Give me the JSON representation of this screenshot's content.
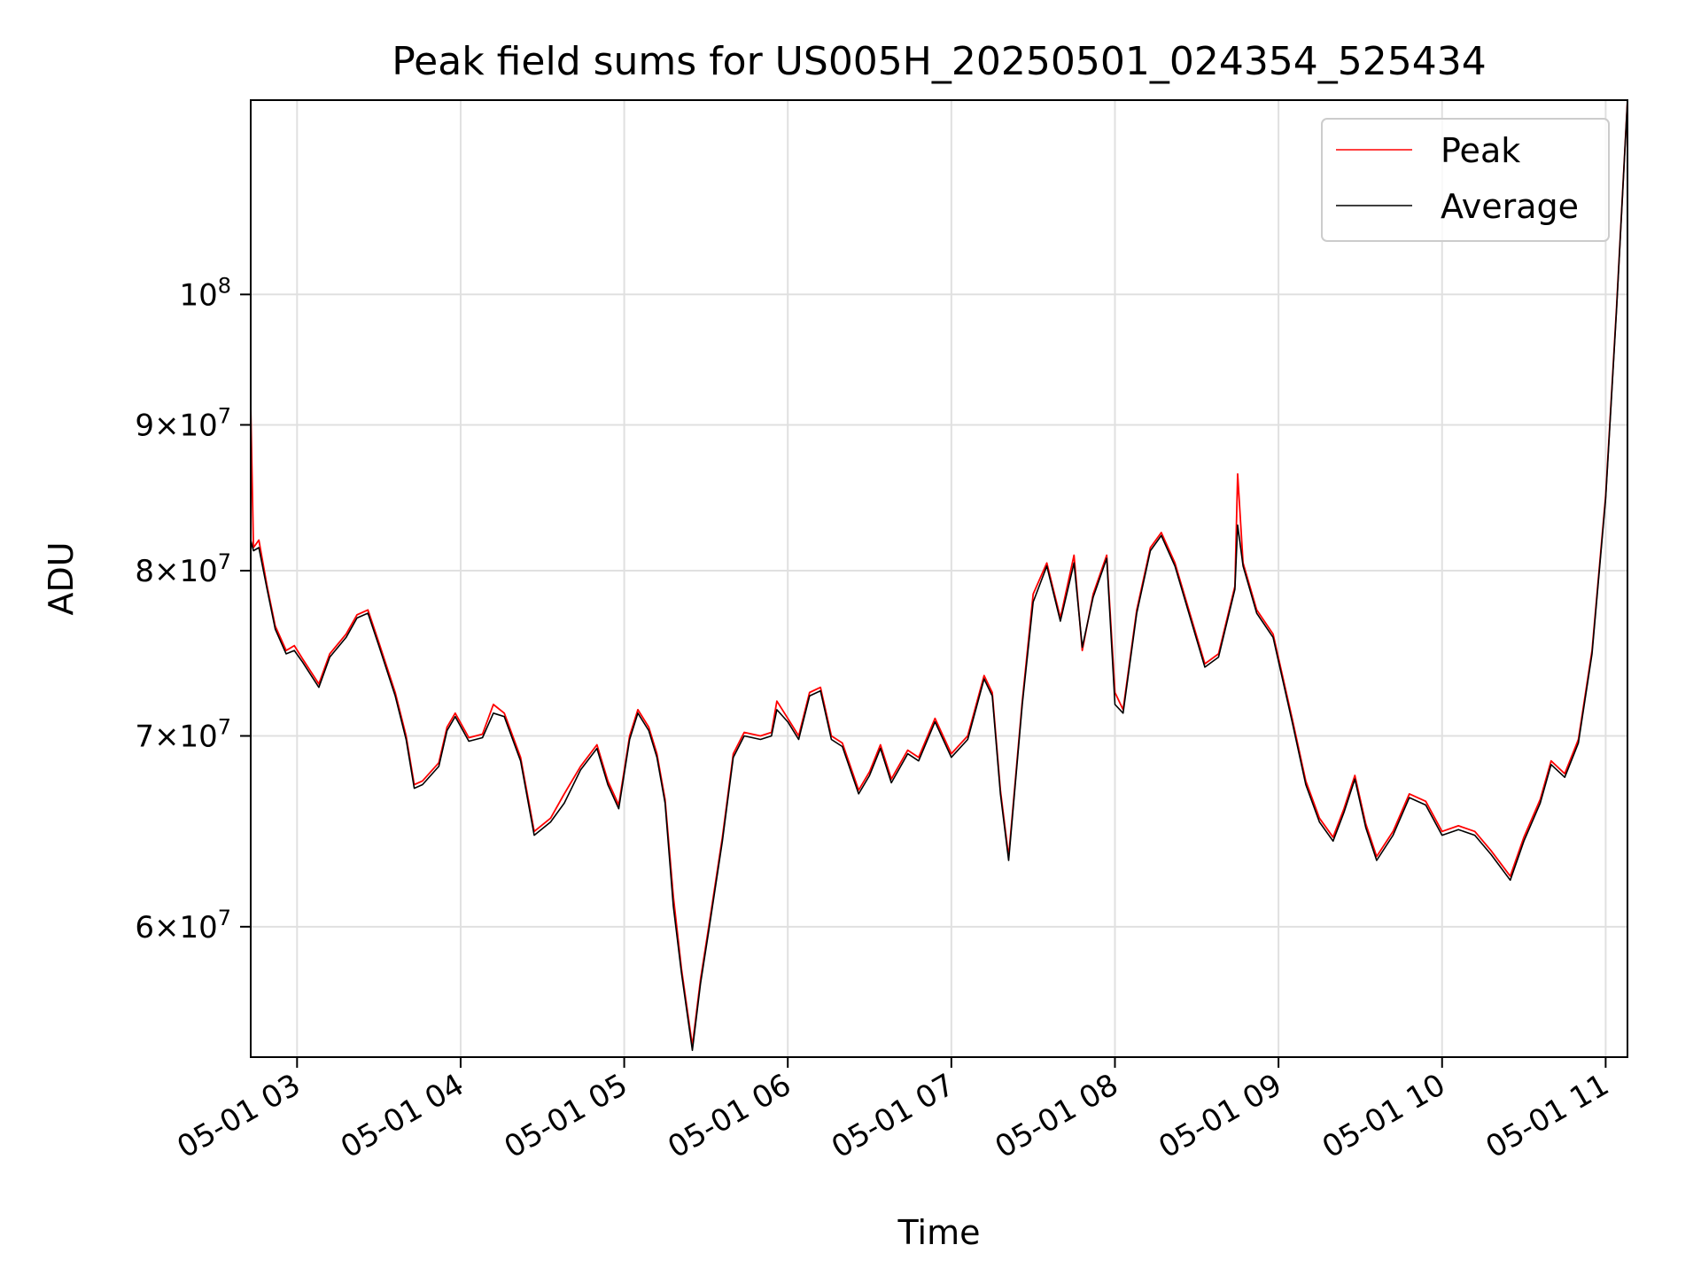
{
  "chart_data": {
    "type": "line",
    "title": "Peak field sums for US005H_20250501_024354_525434",
    "xlabel": "Time",
    "ylabel": "ADU",
    "y_scale": "log",
    "ylim": [
      54000000,
      117000000
    ],
    "xlim": [
      "2025-05-01 02:43",
      "2025-05-01 11:08"
    ],
    "grid": true,
    "legend_position": "top-right",
    "x_ticks": [
      {
        "time": "2025-05-01 03:00",
        "label": "05-01 03"
      },
      {
        "time": "2025-05-01 04:00",
        "label": "05-01 04"
      },
      {
        "time": "2025-05-01 05:00",
        "label": "05-01 05"
      },
      {
        "time": "2025-05-01 06:00",
        "label": "05-01 06"
      },
      {
        "time": "2025-05-01 07:00",
        "label": "05-01 07"
      },
      {
        "time": "2025-05-01 08:00",
        "label": "05-01 08"
      },
      {
        "time": "2025-05-01 09:00",
        "label": "05-01 09"
      },
      {
        "time": "2025-05-01 10:00",
        "label": "05-01 10"
      },
      {
        "time": "2025-05-01 11:00",
        "label": "05-01 11"
      }
    ],
    "y_ticks": [
      {
        "value": 60000000,
        "mantissa": "6",
        "exponent": "7"
      },
      {
        "value": 70000000,
        "mantissa": "7",
        "exponent": "7"
      },
      {
        "value": 80000000,
        "mantissa": "8",
        "exponent": "7"
      },
      {
        "value": 90000000,
        "mantissa": "9",
        "exponent": "7"
      },
      {
        "value": 100000000,
        "mantissa": "",
        "exponent": "8"
      }
    ],
    "colors": {
      "peak": "#ff0000",
      "average": "#000000",
      "grid": "#e0e0e0"
    },
    "series": [
      {
        "name": "Peak",
        "key": "peak",
        "points": [
          [
            "2025-05-01 02:43",
            91500000
          ],
          [
            "2025-05-01 02:44",
            81500000
          ],
          [
            "2025-05-01 02:46",
            82000000
          ],
          [
            "2025-05-01 02:49",
            79000000
          ],
          [
            "2025-05-01 02:52",
            76500000
          ],
          [
            "2025-05-01 02:56",
            75000000
          ],
          [
            "2025-05-01 02:59",
            75300000
          ],
          [
            "2025-05-01 03:02",
            74500000
          ],
          [
            "2025-05-01 03:08",
            73000000
          ],
          [
            "2025-05-01 03:12",
            74800000
          ],
          [
            "2025-05-01 03:18",
            76000000
          ],
          [
            "2025-05-01 03:22",
            77200000
          ],
          [
            "2025-05-01 03:26",
            77500000
          ],
          [
            "2025-05-01 03:30",
            75500000
          ],
          [
            "2025-05-01 03:36",
            72500000
          ],
          [
            "2025-05-01 03:40",
            70000000
          ],
          [
            "2025-05-01 03:43",
            67300000
          ],
          [
            "2025-05-01 03:46",
            67500000
          ],
          [
            "2025-05-01 03:52",
            68500000
          ],
          [
            "2025-05-01 03:55",
            70500000
          ],
          [
            "2025-05-01 03:58",
            71300000
          ],
          [
            "2025-05-01 04:03",
            69900000
          ],
          [
            "2025-05-01 04:08",
            70100000
          ],
          [
            "2025-05-01 04:12",
            71800000
          ],
          [
            "2025-05-01 04:16",
            71300000
          ],
          [
            "2025-05-01 04:22",
            68800000
          ],
          [
            "2025-05-01 04:27",
            64800000
          ],
          [
            "2025-05-01 04:33",
            65500000
          ],
          [
            "2025-05-01 04:38",
            66800000
          ],
          [
            "2025-05-01 04:44",
            68300000
          ],
          [
            "2025-05-01 04:50",
            69500000
          ],
          [
            "2025-05-01 04:54",
            67500000
          ],
          [
            "2025-05-01 04:58",
            66200000
          ],
          [
            "2025-05-01 05:02",
            70000000
          ],
          [
            "2025-05-01 05:05",
            71500000
          ],
          [
            "2025-05-01 05:09",
            70500000
          ],
          [
            "2025-05-01 05:12",
            69000000
          ],
          [
            "2025-05-01 05:15",
            66500000
          ],
          [
            "2025-05-01 05:18",
            61500000
          ],
          [
            "2025-05-01 05:21",
            58000000
          ],
          [
            "2025-05-01 05:25",
            54500000
          ],
          [
            "2025-05-01 05:28",
            57500000
          ],
          [
            "2025-05-01 05:31",
            60000000
          ],
          [
            "2025-05-01 05:36",
            64500000
          ],
          [
            "2025-05-01 05:40",
            69000000
          ],
          [
            "2025-05-01 05:44",
            70200000
          ],
          [
            "2025-05-01 05:50",
            70000000
          ],
          [
            "2025-05-01 05:54",
            70200000
          ],
          [
            "2025-05-01 05:56",
            72000000
          ],
          [
            "2025-05-01 06:00",
            71000000
          ],
          [
            "2025-05-01 06:04",
            70000000
          ],
          [
            "2025-05-01 06:08",
            72500000
          ],
          [
            "2025-05-01 06:12",
            72800000
          ],
          [
            "2025-05-01 06:16",
            70000000
          ],
          [
            "2025-05-01 06:20",
            69600000
          ],
          [
            "2025-05-01 06:26",
            67000000
          ],
          [
            "2025-05-01 06:30",
            68000000
          ],
          [
            "2025-05-01 06:34",
            69500000
          ],
          [
            "2025-05-01 06:38",
            67600000
          ],
          [
            "2025-05-01 06:44",
            69200000
          ],
          [
            "2025-05-01 06:48",
            68800000
          ],
          [
            "2025-05-01 06:54",
            71000000
          ],
          [
            "2025-05-01 07:00",
            69000000
          ],
          [
            "2025-05-01 07:06",
            70000000
          ],
          [
            "2025-05-01 07:12",
            73500000
          ],
          [
            "2025-05-01 07:15",
            72500000
          ],
          [
            "2025-05-01 07:18",
            67000000
          ],
          [
            "2025-05-01 07:21",
            63500000
          ],
          [
            "2025-05-01 07:26",
            72000000
          ],
          [
            "2025-05-01 07:30",
            78500000
          ],
          [
            "2025-05-01 07:35",
            80500000
          ],
          [
            "2025-05-01 07:40",
            77000000
          ],
          [
            "2025-05-01 07:45",
            81000000
          ],
          [
            "2025-05-01 07:48",
            75000000
          ],
          [
            "2025-05-01 07:52",
            78500000
          ],
          [
            "2025-05-01 07:57",
            81000000
          ],
          [
            "2025-05-01 08:00",
            72500000
          ],
          [
            "2025-05-01 08:03",
            71500000
          ],
          [
            "2025-05-01 08:08",
            77500000
          ],
          [
            "2025-05-01 08:13",
            81500000
          ],
          [
            "2025-05-01 08:17",
            82500000
          ],
          [
            "2025-05-01 08:22",
            80500000
          ],
          [
            "2025-05-01 08:28",
            77000000
          ],
          [
            "2025-05-01 08:33",
            74200000
          ],
          [
            "2025-05-01 08:38",
            74800000
          ],
          [
            "2025-05-01 08:44",
            79000000
          ],
          [
            "2025-05-01 08:45",
            86500000
          ],
          [
            "2025-05-01 08:47",
            80500000
          ],
          [
            "2025-05-01 08:52",
            77500000
          ],
          [
            "2025-05-01 08:58",
            76000000
          ],
          [
            "2025-05-01 09:05",
            71000000
          ],
          [
            "2025-05-01 09:10",
            67500000
          ],
          [
            "2025-05-01 09:15",
            65500000
          ],
          [
            "2025-05-01 09:20",
            64500000
          ],
          [
            "2025-05-01 09:24",
            66000000
          ],
          [
            "2025-05-01 09:28",
            67800000
          ],
          [
            "2025-05-01 09:32",
            65200000
          ],
          [
            "2025-05-01 09:36",
            63500000
          ],
          [
            "2025-05-01 09:42",
            64800000
          ],
          [
            "2025-05-01 09:48",
            66800000
          ],
          [
            "2025-05-01 09:54",
            66400000
          ],
          [
            "2025-05-01 10:00",
            64800000
          ],
          [
            "2025-05-01 10:06",
            65100000
          ],
          [
            "2025-05-01 10:12",
            64800000
          ],
          [
            "2025-05-01 10:18",
            63800000
          ],
          [
            "2025-05-01 10:25",
            62500000
          ],
          [
            "2025-05-01 10:30",
            64500000
          ],
          [
            "2025-05-01 10:36",
            66500000
          ],
          [
            "2025-05-01 10:40",
            68600000
          ],
          [
            "2025-05-01 10:45",
            67900000
          ],
          [
            "2025-05-01 10:50",
            69800000
          ],
          [
            "2025-05-01 10:55",
            75000000
          ],
          [
            "2025-05-01 11:00",
            85000000
          ],
          [
            "2025-05-01 11:04",
            99000000
          ],
          [
            "2025-05-01 11:08",
            117000000
          ]
        ]
      },
      {
        "name": "Average",
        "key": "average",
        "points": [
          [
            "2025-05-01 02:43",
            82000000
          ],
          [
            "2025-05-01 02:44",
            81300000
          ],
          [
            "2025-05-01 02:46",
            81500000
          ],
          [
            "2025-05-01 02:49",
            78800000
          ],
          [
            "2025-05-01 02:52",
            76300000
          ],
          [
            "2025-05-01 02:56",
            74800000
          ],
          [
            "2025-05-01 02:59",
            75000000
          ],
          [
            "2025-05-01 03:02",
            74300000
          ],
          [
            "2025-05-01 03:08",
            72800000
          ],
          [
            "2025-05-01 03:12",
            74600000
          ],
          [
            "2025-05-01 03:18",
            75800000
          ],
          [
            "2025-05-01 03:22",
            77000000
          ],
          [
            "2025-05-01 03:26",
            77300000
          ],
          [
            "2025-05-01 03:30",
            75300000
          ],
          [
            "2025-05-01 03:36",
            72300000
          ],
          [
            "2025-05-01 03:40",
            69800000
          ],
          [
            "2025-05-01 03:43",
            67100000
          ],
          [
            "2025-05-01 03:46",
            67300000
          ],
          [
            "2025-05-01 03:52",
            68300000
          ],
          [
            "2025-05-01 03:55",
            70300000
          ],
          [
            "2025-05-01 03:58",
            71100000
          ],
          [
            "2025-05-01 04:03",
            69700000
          ],
          [
            "2025-05-01 04:08",
            69900000
          ],
          [
            "2025-05-01 04:12",
            71300000
          ],
          [
            "2025-05-01 04:16",
            71100000
          ],
          [
            "2025-05-01 04:22",
            68600000
          ],
          [
            "2025-05-01 04:27",
            64600000
          ],
          [
            "2025-05-01 04:33",
            65300000
          ],
          [
            "2025-05-01 04:38",
            66300000
          ],
          [
            "2025-05-01 04:44",
            68100000
          ],
          [
            "2025-05-01 04:50",
            69300000
          ],
          [
            "2025-05-01 04:54",
            67300000
          ],
          [
            "2025-05-01 04:58",
            66000000
          ],
          [
            "2025-05-01 05:02",
            69800000
          ],
          [
            "2025-05-01 05:05",
            71300000
          ],
          [
            "2025-05-01 05:09",
            70300000
          ],
          [
            "2025-05-01 05:12",
            68800000
          ],
          [
            "2025-05-01 05:15",
            66300000
          ],
          [
            "2025-05-01 05:18",
            61000000
          ],
          [
            "2025-05-01 05:21",
            57800000
          ],
          [
            "2025-05-01 05:25",
            54300000
          ],
          [
            "2025-05-01 05:28",
            57300000
          ],
          [
            "2025-05-01 05:31",
            59800000
          ],
          [
            "2025-05-01 05:36",
            64300000
          ],
          [
            "2025-05-01 05:40",
            68800000
          ],
          [
            "2025-05-01 05:44",
            70000000
          ],
          [
            "2025-05-01 05:50",
            69800000
          ],
          [
            "2025-05-01 05:54",
            70000000
          ],
          [
            "2025-05-01 05:56",
            71500000
          ],
          [
            "2025-05-01 06:00",
            70800000
          ],
          [
            "2025-05-01 06:04",
            69800000
          ],
          [
            "2025-05-01 06:08",
            72300000
          ],
          [
            "2025-05-01 06:12",
            72600000
          ],
          [
            "2025-05-01 06:16",
            69800000
          ],
          [
            "2025-05-01 06:20",
            69400000
          ],
          [
            "2025-05-01 06:26",
            66800000
          ],
          [
            "2025-05-01 06:30",
            67800000
          ],
          [
            "2025-05-01 06:34",
            69300000
          ],
          [
            "2025-05-01 06:38",
            67400000
          ],
          [
            "2025-05-01 06:44",
            69000000
          ],
          [
            "2025-05-01 06:48",
            68600000
          ],
          [
            "2025-05-01 06:54",
            70800000
          ],
          [
            "2025-05-01 07:00",
            68800000
          ],
          [
            "2025-05-01 07:06",
            69800000
          ],
          [
            "2025-05-01 07:12",
            73300000
          ],
          [
            "2025-05-01 07:15",
            72300000
          ],
          [
            "2025-05-01 07:18",
            66800000
          ],
          [
            "2025-05-01 07:21",
            63300000
          ],
          [
            "2025-05-01 07:26",
            71800000
          ],
          [
            "2025-05-01 07:30",
            78000000
          ],
          [
            "2025-05-01 07:35",
            80300000
          ],
          [
            "2025-05-01 07:40",
            76800000
          ],
          [
            "2025-05-01 07:45",
            80500000
          ],
          [
            "2025-05-01 07:48",
            75200000
          ],
          [
            "2025-05-01 07:52",
            78300000
          ],
          [
            "2025-05-01 07:57",
            80800000
          ],
          [
            "2025-05-01 08:00",
            71800000
          ],
          [
            "2025-05-01 08:03",
            71300000
          ],
          [
            "2025-05-01 08:08",
            77300000
          ],
          [
            "2025-05-01 08:13",
            81300000
          ],
          [
            "2025-05-01 08:17",
            82300000
          ],
          [
            "2025-05-01 08:22",
            80300000
          ],
          [
            "2025-05-01 08:28",
            76800000
          ],
          [
            "2025-05-01 08:33",
            74000000
          ],
          [
            "2025-05-01 08:38",
            74600000
          ],
          [
            "2025-05-01 08:44",
            78800000
          ],
          [
            "2025-05-01 08:45",
            83000000
          ],
          [
            "2025-05-01 08:47",
            80300000
          ],
          [
            "2025-05-01 08:52",
            77300000
          ],
          [
            "2025-05-01 08:58",
            75800000
          ],
          [
            "2025-05-01 09:05",
            70800000
          ],
          [
            "2025-05-01 09:10",
            67300000
          ],
          [
            "2025-05-01 09:15",
            65300000
          ],
          [
            "2025-05-01 09:20",
            64300000
          ],
          [
            "2025-05-01 09:24",
            65800000
          ],
          [
            "2025-05-01 09:28",
            67600000
          ],
          [
            "2025-05-01 09:32",
            65000000
          ],
          [
            "2025-05-01 09:36",
            63300000
          ],
          [
            "2025-05-01 09:42",
            64600000
          ],
          [
            "2025-05-01 09:48",
            66600000
          ],
          [
            "2025-05-01 09:54",
            66200000
          ],
          [
            "2025-05-01 10:00",
            64600000
          ],
          [
            "2025-05-01 10:06",
            64900000
          ],
          [
            "2025-05-01 10:12",
            64600000
          ],
          [
            "2025-05-01 10:18",
            63600000
          ],
          [
            "2025-05-01 10:25",
            62300000
          ],
          [
            "2025-05-01 10:30",
            64300000
          ],
          [
            "2025-05-01 10:36",
            66300000
          ],
          [
            "2025-05-01 10:40",
            68400000
          ],
          [
            "2025-05-01 10:45",
            67700000
          ],
          [
            "2025-05-01 10:50",
            69600000
          ],
          [
            "2025-05-01 10:55",
            74800000
          ],
          [
            "2025-05-01 11:00",
            84800000
          ],
          [
            "2025-05-01 11:04",
            98800000
          ],
          [
            "2025-05-01 11:08",
            117000000
          ]
        ]
      }
    ]
  }
}
